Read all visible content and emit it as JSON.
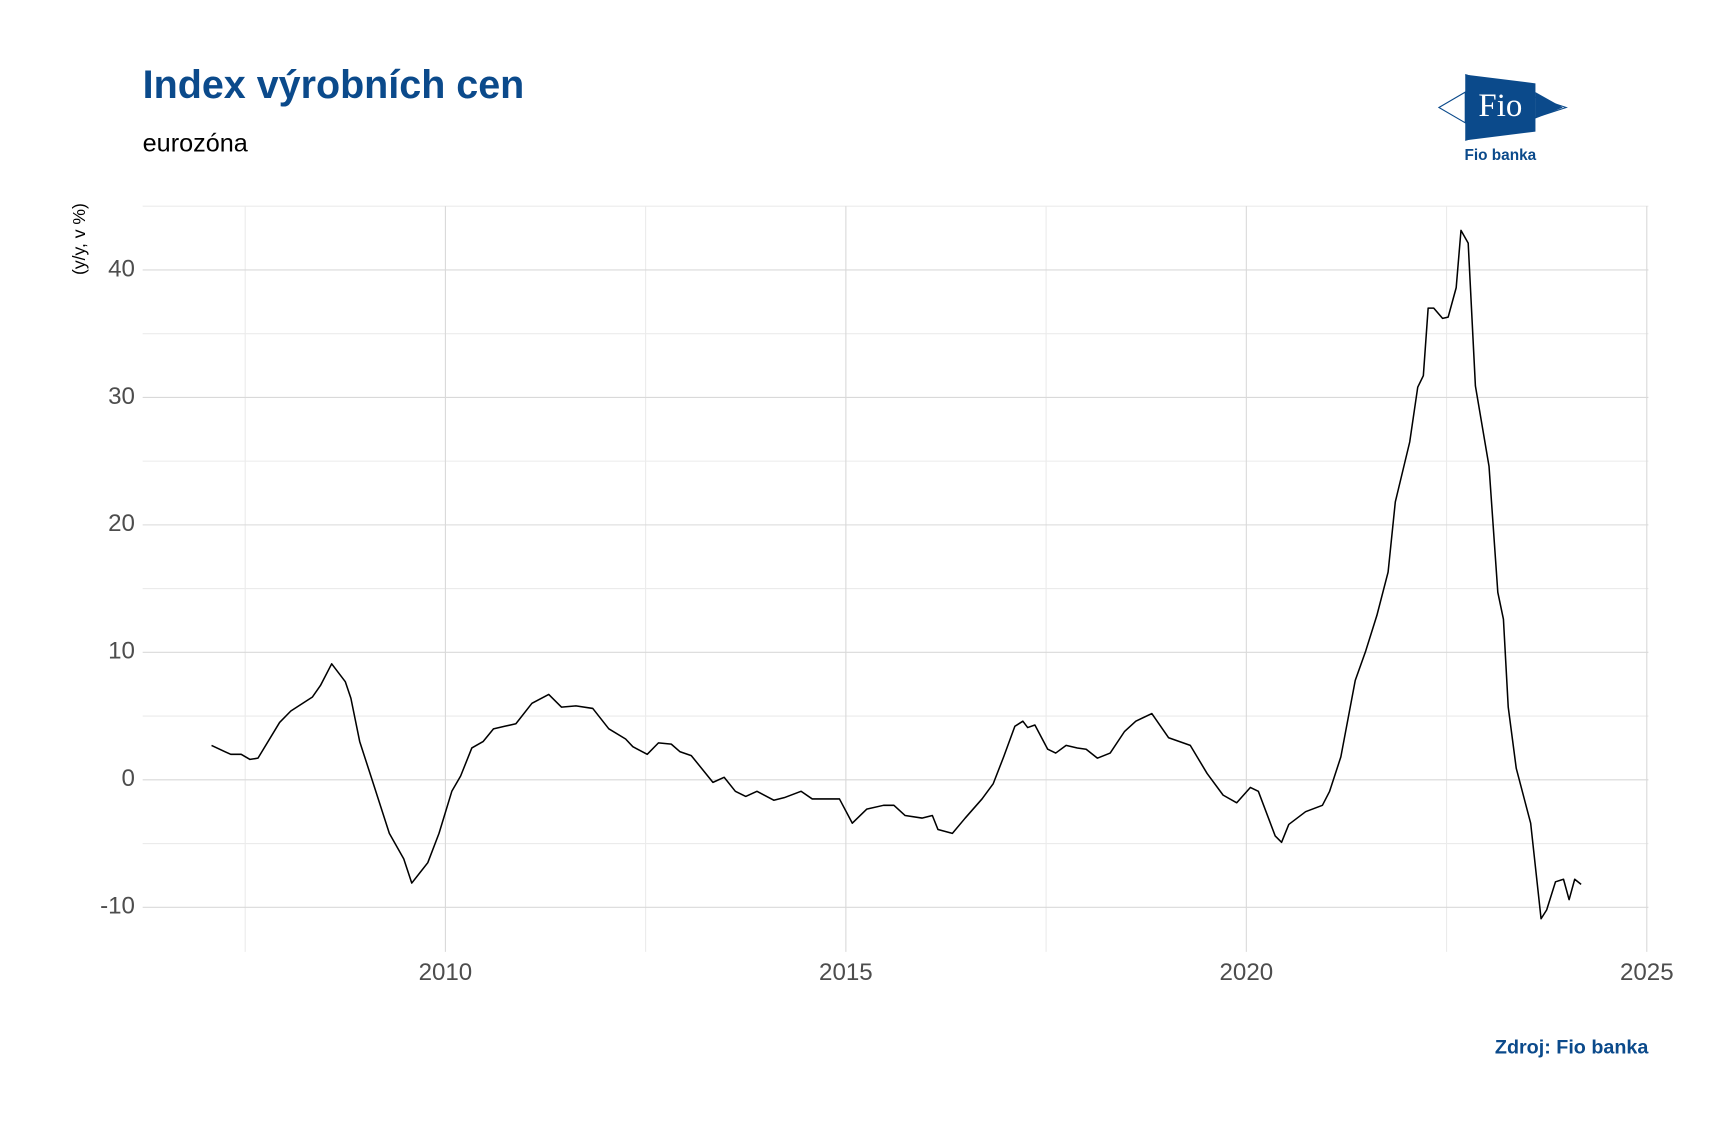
{
  "chart_data": {
    "type": "line",
    "title": "Index výrobních cen",
    "subtitle": "eurozóna",
    "y_label": "(y/y, v %)",
    "source": "Zdroj: Fio banka",
    "logo_mark": "Fio",
    "logo_name": "Fio banka",
    "color": "#000000",
    "grid": true,
    "xlim": [
      2006.22,
      2025.02
    ],
    "ylim": [
      -13.5,
      45
    ],
    "xticks": [
      2010,
      2015,
      2020,
      2025
    ],
    "yticks": [
      -10,
      0,
      10,
      20,
      30,
      40
    ],
    "x": [
      2007.08,
      2007.25,
      2007.32,
      2007.45,
      2007.56,
      2007.66,
      2007.93,
      2008.07,
      2008.34,
      2008.44,
      2008.58,
      2008.75,
      2008.82,
      2008.93,
      2009.1,
      2009.3,
      2009.48,
      2009.58,
      2009.68,
      2009.78,
      2009.92,
      2010.08,
      2010.19,
      2010.33,
      2010.47,
      2010.6,
      2010.74,
      2010.88,
      2011.08,
      2011.29,
      2011.45,
      2011.63,
      2011.84,
      2012.04,
      2012.25,
      2012.34,
      2012.52,
      2012.66,
      2012.82,
      2012.93,
      2013.07,
      2013.34,
      2013.48,
      2013.62,
      2013.75,
      2013.89,
      2014.1,
      2014.23,
      2014.44,
      2014.58,
      2014.78,
      2014.92,
      2015.08,
      2015.26,
      2015.47,
      2015.6,
      2015.74,
      2015.95,
      2016.08,
      2016.15,
      2016.33,
      2016.49,
      2016.7,
      2016.84,
      2016.97,
      2017.11,
      2017.21,
      2017.27,
      2017.36,
      2017.52,
      2017.62,
      2017.75,
      2017.89,
      2018.0,
      2018.14,
      2018.3,
      2018.48,
      2018.62,
      2018.82,
      2019.03,
      2019.3,
      2019.51,
      2019.71,
      2019.88,
      2020.05,
      2020.15,
      2020.36,
      2020.44,
      2020.53,
      2020.74,
      2020.95,
      2021.04,
      2021.18,
      2021.36,
      2021.49,
      2021.63,
      2021.77,
      2021.86,
      2022.04,
      2022.14,
      2022.21,
      2022.27,
      2022.34,
      2022.45,
      2022.52,
      2022.62,
      2022.68,
      2022.77,
      2022.86,
      2023.03,
      2023.14,
      2023.21,
      2023.27,
      2023.37,
      2023.55,
      2023.68,
      2023.75,
      2023.86,
      2023.96,
      2024.03,
      2024.1,
      2024.18
    ],
    "values": [
      2.7,
      2.2,
      2.0,
      2.0,
      1.6,
      1.7,
      4.5,
      5.4,
      6.5,
      7.4,
      9.1,
      7.7,
      6.4,
      3.0,
      -0.3,
      -4.2,
      -6.2,
      -8.1,
      -7.3,
      -6.5,
      -4.2,
      -0.9,
      0.3,
      2.5,
      3.0,
      4.0,
      4.2,
      4.4,
      6.0,
      6.7,
      5.7,
      5.8,
      5.6,
      4.0,
      3.2,
      2.6,
      2.0,
      2.9,
      2.8,
      2.2,
      1.9,
      -0.2,
      0.2,
      -0.9,
      -1.3,
      -0.9,
      -1.6,
      -1.4,
      -0.9,
      -1.5,
      -1.5,
      -1.5,
      -3.4,
      -2.3,
      -2.0,
      -2.0,
      -2.8,
      -3.0,
      -2.8,
      -3.9,
      -4.2,
      -3.0,
      -1.5,
      -0.3,
      1.8,
      4.2,
      4.6,
      4.1,
      4.3,
      2.4,
      2.1,
      2.7,
      2.5,
      2.4,
      1.7,
      2.1,
      3.8,
      4.6,
      5.2,
      3.3,
      2.7,
      0.5,
      -1.2,
      -1.8,
      -0.6,
      -0.9,
      -4.4,
      -4.9,
      -3.5,
      -2.5,
      -2.0,
      -0.9,
      1.8,
      7.8,
      10.1,
      12.9,
      16.3,
      21.8,
      26.5,
      30.8,
      31.7,
      37.0,
      37.0,
      36.2,
      36.3,
      38.6,
      43.1,
      42.1,
      30.9,
      24.6,
      14.7,
      12.6,
      5.7,
      0.9,
      -3.4,
      -10.9,
      -10.2,
      -8.0,
      -7.8,
      -9.4,
      -7.8,
      -8.2
    ]
  }
}
